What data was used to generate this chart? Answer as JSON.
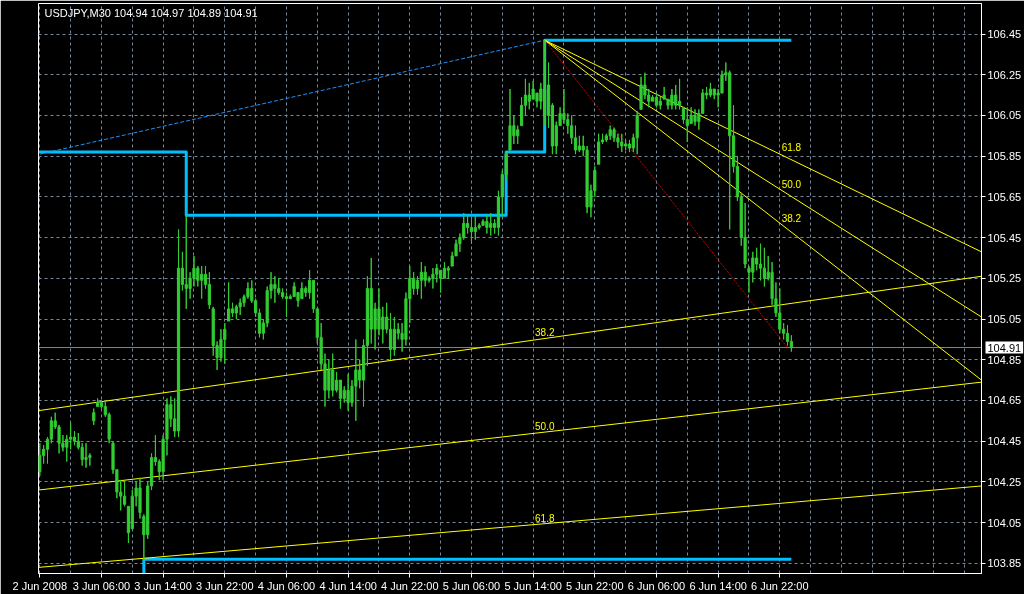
{
  "chart_data": {
    "type": "candlestick",
    "title": "USDJPY,M30  104.94 104.97 104.89 104.91",
    "color": "#32cd32",
    "x": [
      "2008-06-02T22:00",
      "2008-06-02T22:30",
      "2008-06-02T23:00",
      "2008-06-02T23:30",
      "2008-06-03T00:00",
      "2008-06-03T00:30",
      "2008-06-03T01:00",
      "2008-06-03T01:30",
      "2008-06-03T02:00",
      "2008-06-03T02:30",
      "2008-06-03T03:00",
      "2008-06-03T03:30",
      "2008-06-03T04:00",
      "2008-06-03T04:30",
      "2008-06-03T05:00",
      "2008-06-03T05:30",
      "2008-06-03T06:00",
      "2008-06-03T06:30",
      "2008-06-03T07:00",
      "2008-06-03T07:30",
      "2008-06-03T08:00",
      "2008-06-03T08:30",
      "2008-06-03T09:00",
      "2008-06-03T09:30",
      "2008-06-03T10:00",
      "2008-06-03T10:30",
      "2008-06-03T11:00",
      "2008-06-03T11:30",
      "2008-06-03T12:00",
      "2008-06-03T12:30",
      "2008-06-03T13:00",
      "2008-06-03T13:30",
      "2008-06-03T14:00",
      "2008-06-03T14:30",
      "2008-06-03T15:00",
      "2008-06-03T15:30",
      "2008-06-03T16:00",
      "2008-06-03T16:30",
      "2008-06-03T17:00",
      "2008-06-03T17:30",
      "2008-06-03T18:00",
      "2008-06-03T18:30",
      "2008-06-03T19:00",
      "2008-06-03T19:30",
      "2008-06-03T20:00",
      "2008-06-03T20:30",
      "2008-06-03T21:00",
      "2008-06-03T21:30",
      "2008-06-03T22:00",
      "2008-06-03T22:30",
      "2008-06-03T23:00",
      "2008-06-03T23:30",
      "2008-06-04T00:00",
      "2008-06-04T00:30",
      "2008-06-04T01:00",
      "2008-06-04T01:30",
      "2008-06-04T02:00",
      "2008-06-04T02:30",
      "2008-06-04T03:00",
      "2008-06-04T03:30",
      "2008-06-04T04:00",
      "2008-06-04T04:30",
      "2008-06-04T05:00",
      "2008-06-04T05:30",
      "2008-06-04T06:00",
      "2008-06-04T06:30",
      "2008-06-04T07:00",
      "2008-06-04T07:30",
      "2008-06-04T08:00",
      "2008-06-04T08:30",
      "2008-06-04T09:00",
      "2008-06-04T09:30",
      "2008-06-04T10:00",
      "2008-06-04T10:30",
      "2008-06-04T11:00",
      "2008-06-04T11:30",
      "2008-06-04T12:00",
      "2008-06-04T12:30",
      "2008-06-04T13:00",
      "2008-06-04T13:30",
      "2008-06-04T14:00",
      "2008-06-04T14:30",
      "2008-06-04T15:00",
      "2008-06-04T15:30",
      "2008-06-04T16:00",
      "2008-06-04T16:30",
      "2008-06-04T17:00",
      "2008-06-04T17:30",
      "2008-06-04T18:00",
      "2008-06-04T18:30",
      "2008-06-04T19:00",
      "2008-06-04T19:30",
      "2008-06-04T20:00",
      "2008-06-04T20:30",
      "2008-06-04T21:00",
      "2008-06-04T21:30",
      "2008-06-04T22:00",
      "2008-06-04T22:30",
      "2008-06-04T23:00",
      "2008-06-04T23:30",
      "2008-06-05T00:00",
      "2008-06-05T00:30",
      "2008-06-05T01:00",
      "2008-06-05T01:30",
      "2008-06-05T02:00",
      "2008-06-05T02:30",
      "2008-06-05T03:00",
      "2008-06-05T03:30",
      "2008-06-05T04:00",
      "2008-06-05T04:30",
      "2008-06-05T05:00",
      "2008-06-05T05:30",
      "2008-06-05T06:00",
      "2008-06-05T06:30",
      "2008-06-05T07:00",
      "2008-06-05T07:30",
      "2008-06-05T08:00",
      "2008-06-05T08:30",
      "2008-06-05T09:00",
      "2008-06-05T09:30",
      "2008-06-05T10:00",
      "2008-06-05T10:30",
      "2008-06-05T11:00",
      "2008-06-05T11:30",
      "2008-06-05T12:00",
      "2008-06-05T12:30",
      "2008-06-05T13:00",
      "2008-06-05T13:30",
      "2008-06-05T14:00",
      "2008-06-05T14:30",
      "2008-06-05T15:00",
      "2008-06-05T15:30",
      "2008-06-05T16:00",
      "2008-06-05T16:30",
      "2008-06-05T17:00",
      "2008-06-05T17:30",
      "2008-06-05T18:00",
      "2008-06-05T18:30",
      "2008-06-05T19:00",
      "2008-06-05T19:30",
      "2008-06-05T20:00",
      "2008-06-05T20:30",
      "2008-06-05T21:00",
      "2008-06-05T21:30",
      "2008-06-05T22:00",
      "2008-06-05T22:30",
      "2008-06-05T23:00",
      "2008-06-05T23:30",
      "2008-06-06T00:00",
      "2008-06-06T00:30",
      "2008-06-06T01:00",
      "2008-06-06T01:30",
      "2008-06-06T02:00",
      "2008-06-06T02:30",
      "2008-06-06T03:00",
      "2008-06-06T03:30",
      "2008-06-06T04:00",
      "2008-06-06T04:30",
      "2008-06-06T05:00",
      "2008-06-06T05:30",
      "2008-06-06T06:00",
      "2008-06-06T06:30",
      "2008-06-06T07:00",
      "2008-06-06T07:30",
      "2008-06-06T08:00",
      "2008-06-06T08:30",
      "2008-06-06T09:00",
      "2008-06-06T09:30",
      "2008-06-06T10:00",
      "2008-06-06T10:30",
      "2008-06-06T11:00",
      "2008-06-06T11:30",
      "2008-06-06T12:00",
      "2008-06-06T12:30",
      "2008-06-06T13:00",
      "2008-06-06T13:30",
      "2008-06-06T14:00",
      "2008-06-06T14:30",
      "2008-06-06T15:00",
      "2008-06-06T15:30",
      "2008-06-06T16:00",
      "2008-06-06T16:30",
      "2008-06-06T17:00",
      "2008-06-06T17:30",
      "2008-06-06T18:00",
      "2008-06-06T18:30",
      "2008-06-06T19:00",
      "2008-06-06T19:30",
      "2008-06-06T20:00",
      "2008-06-06T20:30",
      "2008-06-06T21:00",
      "2008-06-06T21:30",
      "2008-06-06T22:00",
      "2008-06-06T22:30",
      "2008-06-06T23:00",
      "2008-06-06T23:30"
    ],
    "ohlc": [
      [
        104.3,
        104.44,
        104.28,
        104.38
      ],
      [
        104.38,
        104.43,
        104.34,
        104.41
      ],
      [
        104.41,
        104.47,
        104.34,
        104.46
      ],
      [
        104.46,
        104.57,
        104.44,
        104.55
      ],
      [
        104.55,
        104.59,
        104.51,
        104.52
      ],
      [
        104.52,
        104.53,
        104.39,
        104.44
      ],
      [
        104.44,
        104.48,
        104.4,
        104.42
      ],
      [
        104.42,
        104.48,
        104.35,
        104.46
      ],
      [
        104.46,
        104.54,
        104.41,
        104.47
      ],
      [
        104.47,
        104.5,
        104.43,
        104.45
      ],
      [
        104.45,
        104.49,
        104.41,
        104.42
      ],
      [
        104.42,
        104.44,
        104.33,
        104.36
      ],
      [
        104.36,
        104.44,
        104.32,
        104.37
      ],
      [
        104.37,
        104.39,
        104.33,
        104.38
      ],
      [
        104.59,
        104.61,
        104.53,
        104.55
      ],
      [
        104.62,
        104.66,
        104.62,
        104.64
      ],
      [
        104.62,
        104.65,
        104.61,
        104.64
      ],
      [
        104.62,
        104.65,
        104.57,
        104.58
      ],
      [
        104.58,
        104.59,
        104.44,
        104.46
      ],
      [
        104.44,
        104.45,
        104.29,
        104.31
      ],
      [
        104.31,
        104.31,
        104.17,
        104.2
      ],
      [
        104.2,
        104.26,
        104.11,
        104.18
      ],
      [
        104.18,
        104.25,
        104.13,
        104.14
      ],
      [
        104.13,
        104.13,
        103.95,
        104.0
      ],
      [
        104.02,
        104.21,
        104.02,
        104.18
      ],
      [
        104.18,
        104.25,
        104.13,
        104.22
      ],
      [
        104.22,
        104.27,
        104.07,
        104.1
      ],
      [
        104.08,
        104.09,
        103.87,
        103.99
      ],
      [
        103.99,
        104.25,
        103.97,
        104.23
      ],
      [
        104.23,
        104.39,
        104.21,
        104.37
      ],
      [
        104.37,
        104.48,
        104.33,
        104.35
      ],
      [
        104.35,
        104.36,
        104.26,
        104.3
      ],
      [
        104.3,
        104.48,
        104.26,
        104.46
      ],
      [
        104.46,
        104.66,
        104.38,
        104.63
      ],
      [
        104.63,
        104.67,
        104.52,
        104.56
      ],
      [
        104.56,
        104.66,
        104.47,
        104.5
      ],
      [
        104.5,
        105.49,
        104.47,
        105.3
      ],
      [
        105.3,
        105.38,
        105.19,
        105.22
      ],
      [
        105.22,
        105.56,
        105.1,
        105.2
      ],
      [
        105.2,
        105.28,
        105.15,
        105.25
      ],
      [
        105.25,
        105.36,
        105.21,
        105.3
      ],
      [
        105.3,
        105.31,
        105.21,
        105.24
      ],
      [
        105.24,
        105.31,
        105.15,
        105.27
      ],
      [
        105.27,
        105.31,
        105.2,
        105.22
      ],
      [
        105.22,
        105.28,
        105.1,
        105.12
      ],
      [
        105.1,
        105.11,
        104.87,
        104.92
      ],
      [
        104.92,
        104.94,
        104.8,
        104.86
      ],
      [
        104.86,
        105.0,
        104.84,
        104.95
      ],
      [
        104.95,
        105.03,
        104.83,
        105.0
      ],
      [
        105.04,
        105.23,
        105.04,
        105.1
      ],
      [
        105.1,
        105.13,
        105.06,
        105.08
      ],
      [
        105.08,
        105.12,
        105.05,
        105.11
      ],
      [
        105.11,
        105.15,
        105.07,
        105.13
      ],
      [
        105.13,
        105.17,
        105.11,
        105.16
      ],
      [
        105.16,
        105.23,
        105.15,
        105.2
      ],
      [
        105.2,
        105.24,
        105.13,
        105.14
      ],
      [
        105.14,
        105.15,
        105.06,
        105.08
      ],
      [
        105.08,
        105.1,
        104.96,
        104.98
      ],
      [
        104.98,
        105.05,
        104.95,
        105.03
      ],
      [
        105.03,
        105.21,
        105.01,
        105.19
      ],
      [
        105.19,
        105.28,
        105.15,
        105.22
      ],
      [
        105.22,
        105.26,
        105.13,
        105.2
      ],
      [
        105.2,
        105.25,
        105.17,
        105.18
      ],
      [
        105.18,
        105.2,
        105.15,
        105.16
      ],
      [
        105.16,
        105.18,
        105.06,
        105.15
      ],
      [
        105.15,
        105.17,
        105.15,
        105.16
      ],
      [
        105.16,
        105.23,
        105.16,
        105.21
      ],
      [
        105.18,
        105.18,
        105.11,
        105.14
      ],
      [
        105.15,
        105.23,
        105.15,
        105.2
      ],
      [
        105.2,
        105.21,
        105.16,
        105.18
      ],
      [
        105.18,
        105.29,
        105.15,
        105.24
      ],
      [
        105.24,
        105.24,
        105.08,
        105.1
      ],
      [
        105.1,
        105.1,
        104.93,
        104.96
      ],
      [
        104.96,
        105.03,
        104.8,
        104.83
      ],
      [
        104.83,
        104.88,
        104.62,
        104.7
      ],
      [
        104.7,
        104.85,
        104.66,
        104.8
      ],
      [
        104.8,
        104.88,
        104.67,
        104.7
      ],
      [
        104.7,
        104.79,
        104.69,
        104.75
      ],
      [
        104.75,
        104.75,
        104.61,
        104.66
      ],
      [
        104.66,
        104.72,
        104.64,
        104.7
      ],
      [
        104.7,
        104.78,
        104.6,
        104.64
      ],
      [
        104.64,
        104.75,
        104.62,
        104.72
      ],
      [
        104.72,
        104.95,
        104.55,
        104.8
      ],
      [
        104.8,
        104.85,
        104.71,
        104.75
      ],
      [
        104.75,
        104.95,
        104.62,
        104.92
      ],
      [
        104.92,
        105.26,
        104.82,
        105.2
      ],
      [
        105.2,
        105.35,
        104.93,
        105.0
      ],
      [
        105.0,
        105.13,
        104.9,
        105.1
      ],
      [
        105.1,
        105.2,
        104.97,
        105.0
      ],
      [
        105.0,
        105.11,
        104.93,
        105.06
      ],
      [
        105.06,
        105.13,
        104.98,
        105.0
      ],
      [
        105.0,
        105.08,
        104.85,
        104.9
      ],
      [
        104.9,
        105.06,
        104.87,
        105.0
      ],
      [
        105.0,
        105.03,
        104.95,
        104.98
      ],
      [
        104.98,
        105.03,
        104.89,
        104.95
      ],
      [
        104.95,
        105.18,
        104.92,
        105.15
      ],
      [
        105.15,
        105.31,
        105.03,
        105.25
      ],
      [
        105.25,
        105.28,
        105.17,
        105.2
      ],
      [
        105.2,
        105.26,
        105.17,
        105.24
      ],
      [
        105.24,
        105.33,
        105.15,
        105.28
      ],
      [
        105.28,
        105.31,
        105.21,
        105.24
      ],
      [
        105.24,
        105.26,
        105.23,
        105.25
      ],
      [
        105.25,
        105.3,
        105.2,
        105.27
      ],
      [
        105.27,
        105.32,
        105.23,
        105.3
      ],
      [
        105.29,
        105.29,
        105.18,
        105.25
      ],
      [
        105.25,
        105.33,
        105.25,
        105.3
      ],
      [
        105.3,
        105.31,
        105.25,
        105.29
      ],
      [
        105.31,
        105.38,
        105.31,
        105.36
      ],
      [
        105.36,
        105.44,
        105.36,
        105.42
      ],
      [
        105.42,
        105.47,
        105.38,
        105.45
      ],
      [
        105.45,
        105.57,
        105.44,
        105.52
      ],
      [
        105.52,
        105.56,
        105.47,
        105.5
      ],
      [
        105.5,
        105.54,
        105.42,
        105.48
      ],
      [
        105.48,
        105.56,
        105.44,
        105.5
      ],
      [
        105.5,
        105.52,
        105.49,
        105.51
      ],
      [
        105.51,
        105.54,
        105.51,
        105.53
      ],
      [
        105.53,
        105.56,
        105.47,
        105.5
      ],
      [
        105.5,
        105.57,
        105.46,
        105.52
      ],
      [
        105.52,
        105.54,
        105.47,
        105.5
      ],
      [
        105.5,
        105.68,
        105.46,
        105.65
      ],
      [
        105.65,
        105.78,
        105.56,
        105.76
      ],
      [
        105.76,
        105.87,
        105.74,
        105.86
      ],
      [
        105.88,
        106.18,
        105.88,
        106.0
      ],
      [
        106.0,
        106.05,
        105.91,
        105.95
      ],
      [
        105.95,
        106.0,
        105.91,
        105.98
      ],
      [
        106.0,
        106.14,
        106.0,
        106.1
      ],
      [
        106.1,
        106.23,
        106.05,
        106.15
      ],
      [
        106.15,
        106.21,
        106.08,
        106.12
      ],
      [
        106.13,
        106.22,
        106.13,
        106.18
      ],
      [
        106.16,
        106.16,
        106.09,
        106.12
      ],
      [
        106.12,
        106.21,
        106.08,
        106.18
      ],
      [
        106.18,
        106.42,
        106.0,
        106.05
      ],
      [
        106.05,
        106.31,
        105.99,
        106.2
      ],
      [
        106.1,
        106.11,
        105.86,
        105.9
      ],
      [
        105.9,
        106.02,
        105.86,
        106.0
      ],
      [
        106.0,
        106.09,
        106.0,
        106.06
      ],
      [
        106.06,
        106.18,
        106.01,
        106.03
      ],
      [
        106.03,
        106.06,
        105.96,
        106.0
      ],
      [
        106.0,
        106.05,
        105.91,
        105.94
      ],
      [
        105.94,
        106.0,
        105.86,
        105.88
      ],
      [
        105.88,
        105.95,
        105.87,
        105.9
      ],
      [
        105.9,
        105.95,
        105.85,
        105.88
      ],
      [
        105.88,
        105.9,
        105.57,
        105.6
      ],
      [
        105.6,
        105.71,
        105.55,
        105.68
      ],
      [
        105.68,
        105.8,
        105.65,
        105.78
      ],
      [
        105.81,
        105.96,
        105.81,
        105.92
      ],
      [
        105.92,
        105.96,
        105.91,
        105.93
      ],
      [
        105.93,
        105.96,
        105.92,
        105.95
      ],
      [
        105.95,
        106.0,
        105.93,
        105.98
      ],
      [
        105.98,
        105.99,
        105.92,
        105.94
      ],
      [
        105.94,
        105.96,
        105.89,
        105.92
      ],
      [
        105.92,
        105.96,
        105.87,
        105.9
      ],
      [
        105.9,
        105.93,
        105.88,
        105.91
      ],
      [
        105.91,
        105.93,
        105.87,
        105.89
      ],
      [
        105.89,
        105.96,
        105.87,
        105.94
      ],
      [
        105.94,
        106.07,
        105.86,
        106.05
      ],
      [
        106.08,
        106.24,
        106.08,
        106.2
      ],
      [
        106.2,
        106.26,
        106.13,
        106.15
      ],
      [
        106.15,
        106.18,
        106.09,
        106.12
      ],
      [
        106.12,
        106.15,
        106.12,
        106.14
      ],
      [
        106.14,
        106.16,
        106.09,
        106.1
      ],
      [
        106.1,
        106.14,
        106.08,
        106.12
      ],
      [
        106.13,
        106.19,
        106.13,
        106.15
      ],
      [
        106.13,
        106.13,
        106.08,
        106.1
      ],
      [
        106.1,
        106.18,
        106.08,
        106.15
      ],
      [
        106.15,
        106.2,
        106.08,
        106.1
      ],
      [
        106.1,
        106.23,
        106.08,
        106.12
      ],
      [
        106.09,
        106.09,
        106.01,
        106.03
      ],
      [
        106.03,
        106.09,
        105.92,
        106.0
      ],
      [
        106.01,
        106.09,
        106.01,
        106.05
      ],
      [
        106.05,
        106.08,
        106.0,
        106.02
      ],
      [
        106.02,
        106.08,
        105.98,
        106.06
      ],
      [
        106.06,
        106.18,
        106.06,
        106.16
      ],
      [
        106.16,
        106.19,
        106.13,
        106.15
      ],
      [
        106.15,
        106.21,
        106.14,
        106.18
      ],
      [
        106.18,
        106.18,
        106.13,
        106.15
      ],
      [
        106.15,
        106.18,
        106.09,
        106.16
      ],
      [
        106.16,
        106.27,
        106.16,
        106.25
      ],
      [
        106.25,
        106.31,
        106.22,
        106.26
      ],
      [
        106.26,
        106.27,
        105.49,
        105.95
      ],
      [
        105.95,
        106.1,
        105.77,
        105.8
      ],
      [
        105.8,
        105.85,
        105.63,
        105.65
      ],
      [
        105.65,
        105.67,
        105.41,
        105.45
      ],
      [
        105.45,
        105.62,
        105.3,
        105.32
      ],
      [
        105.3,
        105.31,
        105.18,
        105.28
      ],
      [
        105.28,
        105.38,
        105.23,
        105.35
      ],
      [
        105.35,
        105.4,
        105.29,
        105.32
      ],
      [
        105.32,
        105.42,
        105.24,
        105.3
      ],
      [
        105.3,
        105.4,
        105.21,
        105.25
      ],
      [
        105.25,
        105.36,
        105.24,
        105.28
      ],
      [
        105.28,
        105.33,
        105.12,
        105.15
      ],
      [
        105.15,
        105.23,
        105.06,
        105.08
      ],
      [
        105.08,
        105.2,
        104.98,
        105.0
      ],
      [
        105.0,
        105.03,
        104.95,
        104.98
      ],
      [
        104.98,
        105.02,
        104.92,
        104.94
      ],
      [
        104.94,
        104.97,
        104.89,
        104.91
      ]
    ],
    "series": [
      {
        "type": "step",
        "color": "#00bfff",
        "x": [
          "2008-06-02T22:00",
          "2008-06-03T17:00",
          "2008-06-05T10:30",
          "2008-06-05T15:30",
          "2008-06-06T23:30"
        ],
        "values": [
          105.87,
          105.56,
          105.87,
          106.42,
          106.42
        ]
      },
      {
        "type": "step",
        "color": "#00bfff",
        "x": [
          "2008-06-03T11:30",
          "2008-06-03T11:30",
          "2008-06-06T23:30"
        ],
        "values": [
          103.8,
          103.87,
          103.87
        ]
      },
      {
        "type": "line",
        "color": "#1e90ff",
        "line_style": "dashed",
        "x": [
          "2008-06-02T22:00",
          "2008-06-05T15:30"
        ],
        "values": [
          105.86,
          106.42
        ]
      },
      {
        "type": "line",
        "color": "#ff0000",
        "line_style": "dotted",
        "x": [
          "2008-06-05T15:30",
          "2008-06-06T23:00"
        ],
        "values": [
          106.42,
          104.91
        ]
      },
      {
        "type": "line",
        "color": "#ffff00",
        "x": [
          "2008-06-05T15:30",
          "2008-06-08T00:10"
        ],
        "values": [
          106.42,
          105.38
        ]
      },
      {
        "type": "line",
        "color": "#ffff00",
        "x": [
          "2008-06-05T15:30",
          "2008-06-08T00:10"
        ],
        "values": [
          106.42,
          105.06
        ]
      },
      {
        "type": "line",
        "color": "#ffff00",
        "x": [
          "2008-06-05T15:30",
          "2008-06-08T00:10"
        ],
        "values": [
          106.42,
          104.75
        ]
      },
      {
        "type": "line",
        "color": "#ffff00",
        "x": [
          "2008-06-02T21:50",
          "2008-06-08T00:10"
        ],
        "values": [
          104.6,
          105.26
        ]
      },
      {
        "type": "line",
        "color": "#ffff00",
        "x": [
          "2008-06-02T21:50",
          "2008-06-08T00:10"
        ],
        "values": [
          104.21,
          104.74
        ]
      },
      {
        "type": "line",
        "color": "#ffff00",
        "x": [
          "2008-06-02T21:50",
          "2008-06-08T00:10"
        ],
        "values": [
          103.83,
          104.23
        ]
      }
    ],
    "ref_lines": [
      {
        "axis": "y",
        "value": 104.91,
        "label": "104.91",
        "color": "#778899"
      }
    ],
    "annotations": [
      {
        "text": "61.8",
        "x": "2008-06-06T22:15",
        "y": 105.86
      },
      {
        "text": "50.0",
        "x": "2008-06-06T22:15",
        "y": 105.68
      },
      {
        "text": "38.2",
        "x": "2008-06-06T22:15",
        "y": 105.51
      },
      {
        "text": "38.2",
        "x": "2008-06-05T14:15",
        "y": 104.95
      },
      {
        "text": "50.0",
        "x": "2008-06-05T14:15",
        "y": 104.49
      },
      {
        "text": "61.8",
        "x": "2008-06-05T14:15",
        "y": 104.04
      }
    ],
    "xlim": [
      "2008-06-02T21:50",
      "2008-06-08T00:10"
    ],
    "ylim": [
      103.8,
      106.6
    ],
    "xticks": [
      {
        "value": "2008-06-02T22:00",
        "label": "2 Jun 2008"
      },
      {
        "value": "2008-06-03T02:00",
        "label": null
      },
      {
        "value": "2008-06-03T06:00",
        "label": "3 Jun 06:00"
      },
      {
        "value": "2008-06-03T10:00",
        "label": null
      },
      {
        "value": "2008-06-03T14:00",
        "label": "3 Jun 14:00"
      },
      {
        "value": "2008-06-03T18:00",
        "label": null
      },
      {
        "value": "2008-06-03T22:00",
        "label": "3 Jun 22:00"
      },
      {
        "value": "2008-06-04T02:00",
        "label": null
      },
      {
        "value": "2008-06-04T06:00",
        "label": "4 Jun 06:00"
      },
      {
        "value": "2008-06-04T10:00",
        "label": null
      },
      {
        "value": "2008-06-04T14:00",
        "label": "4 Jun 14:00"
      },
      {
        "value": "2008-06-04T18:00",
        "label": null
      },
      {
        "value": "2008-06-04T22:00",
        "label": "4 Jun 22:00"
      },
      {
        "value": "2008-06-05T02:00",
        "label": null
      },
      {
        "value": "2008-06-05T06:00",
        "label": "5 Jun 06:00"
      },
      {
        "value": "2008-06-05T10:00",
        "label": null
      },
      {
        "value": "2008-06-05T14:00",
        "label": "5 Jun 14:00"
      },
      {
        "value": "2008-06-05T18:00",
        "label": null
      },
      {
        "value": "2008-06-05T22:00",
        "label": "5 Jun 22:00"
      },
      {
        "value": "2008-06-06T02:00",
        "label": null
      },
      {
        "value": "2008-06-06T06:00",
        "label": "6 Jun 06:00"
      },
      {
        "value": "2008-06-06T10:00",
        "label": null
      },
      {
        "value": "2008-06-06T14:00",
        "label": "6 Jun 14:00"
      },
      {
        "value": "2008-06-06T18:00",
        "label": null
      },
      {
        "value": "2008-06-06T22:00",
        "label": "6 Jun 22:00"
      },
      {
        "value": "2008-06-07T02:00",
        "label": null
      },
      {
        "value": "2008-06-07T06:00",
        "label": null
      },
      {
        "value": "2008-06-07T10:00",
        "label": null
      },
      {
        "value": "2008-06-07T14:00",
        "label": null
      },
      {
        "value": "2008-06-07T18:00",
        "label": null
      },
      {
        "value": "2008-06-07T22:00",
        "label": null
      }
    ],
    "yticks": [
      103.85,
      104.05,
      104.25,
      104.45,
      104.65,
      104.85,
      105.05,
      105.25,
      105.45,
      105.65,
      105.85,
      106.05,
      106.25,
      106.45
    ],
    "grid": true
  }
}
